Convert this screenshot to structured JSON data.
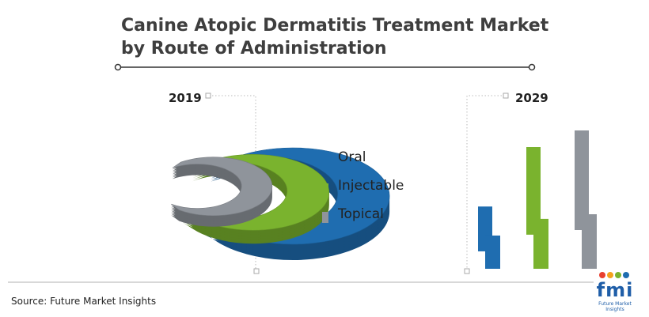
{
  "chart_data": {
    "type": "bar",
    "title": "Canine Atopic Dermatitis Treatment Market",
    "subtitle": "by Route of Administration",
    "periods": [
      "2019",
      "2029"
    ],
    "series": [
      {
        "name": "Oral",
        "color": "#1f6db0",
        "share_2019": 0.4
      },
      {
        "name": "Injectable",
        "color": "#7ab32e",
        "share_2019": 0.35
      },
      {
        "name": "Topical",
        "color": "#8f949b",
        "share_2019": 0.25
      }
    ],
    "levels_2029": [
      0.45,
      0.88,
      1.0
    ],
    "source": "Source: Future Market Insights"
  },
  "logo": {
    "text": "fmi",
    "subtext": "Future Market Insights",
    "dot_colors": [
      "#e8402f",
      "#f4a21c",
      "#7ab32e",
      "#1f6db0"
    ]
  }
}
